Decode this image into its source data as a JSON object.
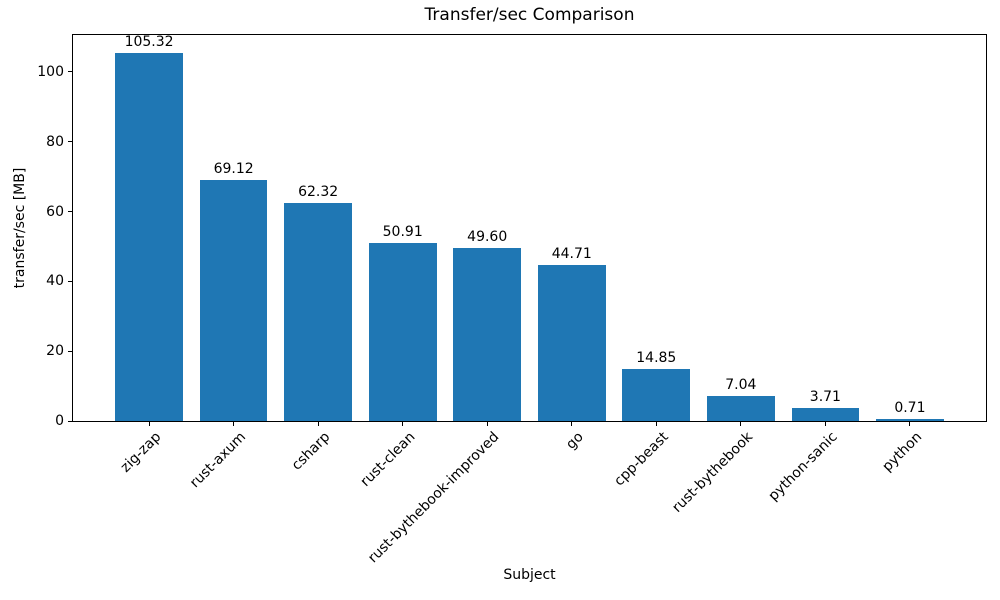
{
  "chart_data": {
    "type": "bar",
    "title": "Transfer/sec Comparison",
    "xlabel": "Subject",
    "ylabel": "transfer/sec [MB]",
    "categories": [
      "zig-zap",
      "rust-axum",
      "csharp",
      "rust-clean",
      "rust-bythebook-improved",
      "go",
      "cpp-beast",
      "rust-bythebook",
      "python-sanic",
      "python"
    ],
    "values": [
      105.32,
      69.12,
      62.32,
      50.91,
      49.6,
      44.71,
      14.85,
      7.04,
      3.71,
      0.71
    ],
    "value_labels": [
      "105.32",
      "69.12",
      "62.32",
      "50.91",
      "49.60",
      "44.71",
      "14.85",
      "7.04",
      "3.71",
      "0.71"
    ],
    "yticks": [
      0,
      20,
      40,
      60,
      80,
      100
    ],
    "ylim": [
      0,
      110.59
    ],
    "bar_color": "#1f77b4",
    "grid": false,
    "legend": null
  }
}
